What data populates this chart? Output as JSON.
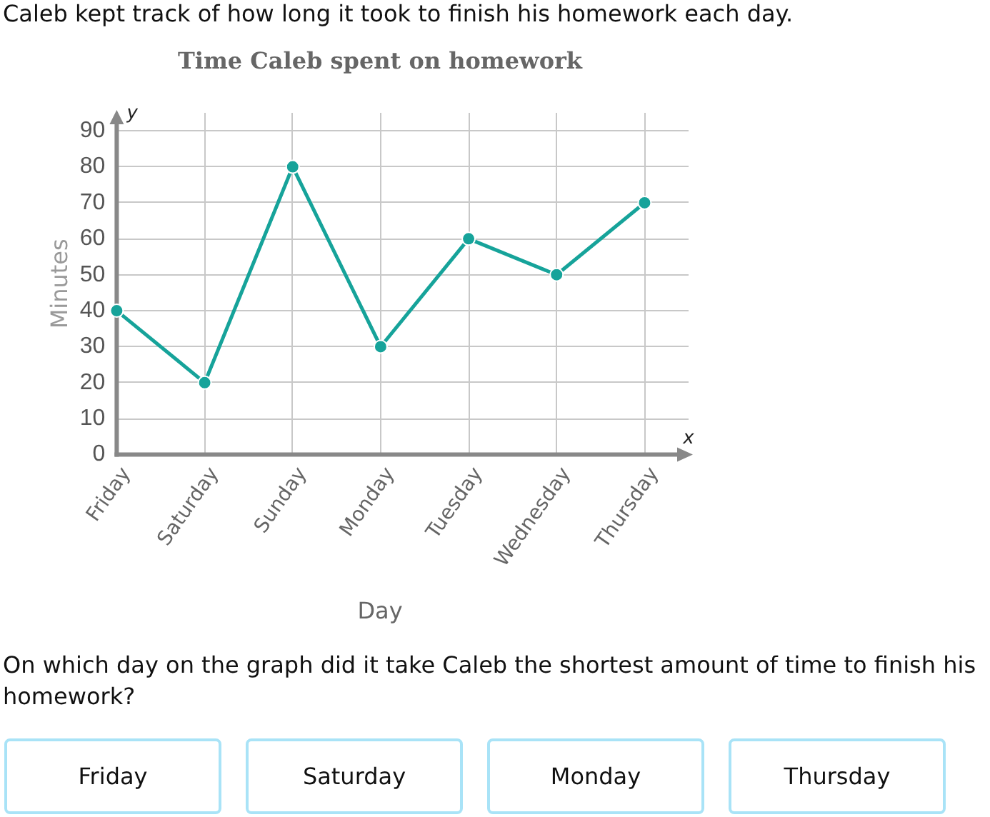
{
  "chart_data": {
    "type": "line",
    "title": "Time Caleb spent on homework",
    "xlabel": "Day",
    "ylabel": "Minutes",
    "categories": [
      "Friday",
      "Saturday",
      "Sunday",
      "Monday",
      "Tuesday",
      "Wednesday",
      "Thursday"
    ],
    "values": [
      40,
      20,
      80,
      30,
      60,
      50,
      70
    ],
    "color": "#16a39a",
    "ylim": [
      0,
      95
    ],
    "yticks": [
      0,
      10,
      20,
      30,
      40,
      50,
      60,
      70,
      80,
      90
    ],
    "grid": true,
    "marker": "circle",
    "annotations": [
      "Caleb kept track of how long it took to finish his homework each day.",
      "y",
      "x",
      "On which day on the graph did it take Caleb the shortest amount of time to finish his homework?",
      "Friday",
      "Saturday",
      "Monday",
      "Thursday"
    ]
  }
}
